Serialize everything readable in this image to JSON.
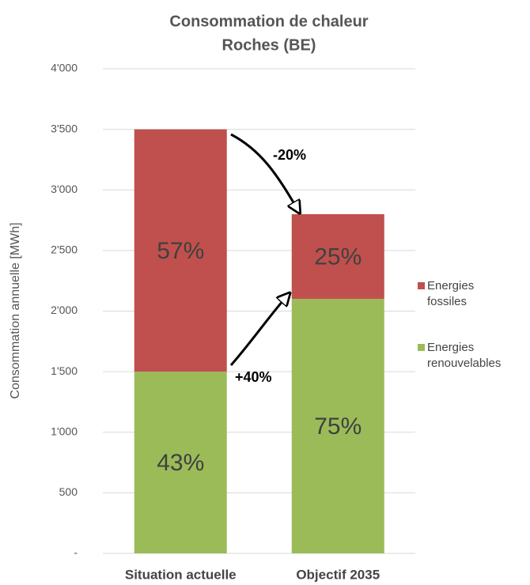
{
  "chart_data": {
    "type": "stacked_bar",
    "title": [
      "Consommation de chaleur",
      "Roches (BE)"
    ],
    "y_label": "Consommation annuelle [MWh]",
    "categories": [
      "Situation actuelle",
      "Objectif 2035"
    ],
    "series": [
      {
        "name": "Energies renouvelables",
        "color": "#9bbb59",
        "values": [
          1500,
          2100
        ]
      },
      {
        "name": "Energies fossiles",
        "color": "#c0504d",
        "values": [
          2000,
          700
        ]
      }
    ],
    "segment_labels": [
      [
        "43%",
        "75%"
      ],
      [
        "57%",
        "25%"
      ]
    ],
    "annotations": [
      "-20%",
      "+40%"
    ],
    "ylim": [
      0,
      4000
    ],
    "yticks": [
      {
        "value": 0,
        "label": "-"
      },
      500,
      {
        "value": 1000,
        "label": "1'000"
      },
      {
        "value": 1500,
        "label": "1'500"
      },
      {
        "value": 2000,
        "label": "2'000"
      },
      {
        "value": 2500,
        "label": "2'500"
      },
      {
        "value": 3000,
        "label": "3'000"
      },
      {
        "value": 3500,
        "label": "3'500"
      },
      {
        "value": 4000,
        "label": "4'000"
      }
    ],
    "grid": true,
    "legend": "right"
  }
}
